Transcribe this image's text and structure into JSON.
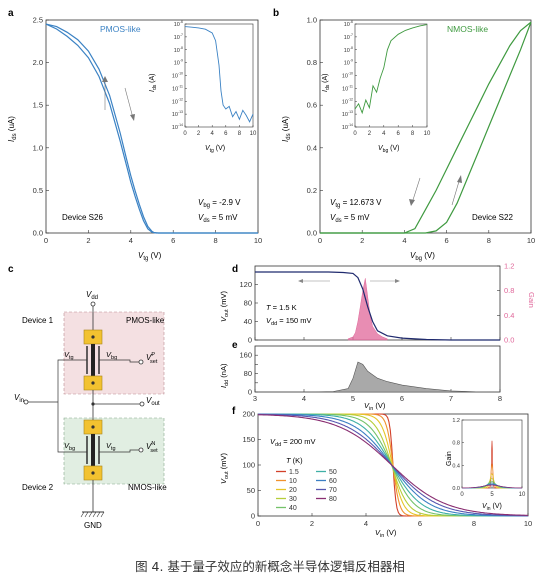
{
  "caption": "图 4. 基于量子效应的新概念半导体逻辑反相器相",
  "colors": {
    "pmos": "#3b82c4",
    "nmos": "#3f9a40",
    "gain_pink": "#e0679a",
    "vout_navy": "#1f2a6e",
    "ids_gray": "#a9a9a9",
    "device1_fill": "#f4e0e2",
    "device2_fill": "#e1eee2",
    "gate_yellow": "#f2c230"
  },
  "chart_data": [
    {
      "panel": "a",
      "type": "line",
      "xlabel": "V_tg (V)",
      "ylabel": "I_ds (uA)",
      "xlim": [
        0,
        10
      ],
      "ylim": [
        0,
        2.6
      ],
      "xticks": [
        "0",
        "2",
        "4",
        "6",
        "8",
        "10"
      ],
      "yticks": [
        "0.0",
        "0.5",
        "1.0",
        "1.5",
        "2.0",
        "2.5"
      ],
      "series": [
        {
          "name": "PMOS-like",
          "x": [
            0,
            0.5,
            1,
            1.5,
            2,
            2.5,
            3,
            3.5,
            3.8,
            4,
            4.2,
            4.4,
            4.6,
            4.8,
            5,
            5.1,
            5.3,
            6,
            8,
            10
          ],
          "y": [
            2.55,
            2.52,
            2.45,
            2.36,
            2.22,
            2.0,
            1.68,
            1.22,
            0.9,
            0.7,
            0.52,
            0.35,
            0.2,
            0.08,
            0.02,
            0.005,
            0,
            0,
            0,
            0
          ]
        },
        {
          "name": "",
          "x": [
            0,
            0.5,
            1,
            1.5,
            2,
            2.5,
            3,
            3.5,
            3.8,
            4,
            4.2,
            4.4,
            4.6,
            4.8,
            5,
            5.2,
            5.4,
            6,
            8,
            10
          ],
          "y": [
            2.55,
            2.49,
            2.4,
            2.29,
            2.14,
            1.91,
            1.58,
            1.12,
            0.82,
            0.62,
            0.45,
            0.29,
            0.15,
            0.05,
            0.01,
            0,
            0,
            0,
            0,
            0
          ]
        }
      ],
      "annotations": [
        "V_bg = -2.9 V",
        "V_ds = 5 mV",
        "Device S26"
      ],
      "inset": {
        "xlabel": "V_tg (V)",
        "ylabel": "I_ds (A)",
        "xlim": [
          0,
          10
        ],
        "xticks": [
          "0",
          "2",
          "4",
          "6",
          "8",
          "10"
        ],
        "yticks": [
          "10^-6",
          "10^-7",
          "10^-8",
          "10^-9",
          "10^-10",
          "10^-11",
          "10^-12",
          "10^-13",
          "10^-14"
        ],
        "x": [
          0,
          1,
          2,
          3,
          4,
          4.5,
          5,
          5.3,
          5.6,
          6,
          6.5,
          7,
          7.5,
          8,
          8.5,
          9,
          9.5,
          10
        ],
        "log10_y": [
          -6.2,
          -6.25,
          -6.3,
          -6.4,
          -6.7,
          -7.3,
          -9.2,
          -11.2,
          -12.3,
          -12.6,
          -12.4,
          -13.2,
          -12.8,
          -13.4,
          -12.7,
          -13.1,
          -13.6,
          -13.0
        ]
      }
    },
    {
      "panel": "b",
      "type": "line",
      "xlabel": "V_bg (V)",
      "ylabel": "I_ds (uA)",
      "xlim": [
        0,
        10
      ],
      "ylim": [
        0,
        1.0
      ],
      "xticks": [
        "0",
        "2",
        "4",
        "6",
        "8",
        "10"
      ],
      "yticks": [
        "0.0",
        "0.2",
        "0.4",
        "0.6",
        "0.8",
        "1.0"
      ],
      "series": [
        {
          "name": "NMOS-like",
          "x": [
            0,
            3,
            4,
            4.5,
            5,
            5.5,
            6,
            6.5,
            7,
            7.5,
            8,
            8.5,
            9,
            9.5,
            10
          ],
          "y": [
            0,
            0,
            0,
            0.02,
            0.11,
            0.2,
            0.3,
            0.4,
            0.5,
            0.6,
            0.7,
            0.79,
            0.88,
            0.95,
            0.99
          ]
        },
        {
          "name": "",
          "x": [
            0,
            4,
            5,
            5.5,
            6,
            6.5,
            7,
            7.5,
            8,
            8.5,
            9,
            9.5,
            10
          ],
          "y": [
            0,
            0,
            0,
            0.01,
            0.05,
            0.14,
            0.26,
            0.38,
            0.5,
            0.62,
            0.74,
            0.86,
            0.99
          ]
        }
      ],
      "annotations": [
        "V_tg = 12.673 V",
        "V_ds = 5 mV",
        "Device S22"
      ],
      "inset": {
        "xlabel": "V_bg (V)",
        "ylabel": "I_ds (A)",
        "xlim": [
          0,
          10
        ],
        "xticks": [
          "0",
          "2",
          "4",
          "6",
          "8",
          "10"
        ],
        "yticks": [
          "10^-6",
          "10^-7",
          "10^-8",
          "10^-9",
          "10^-10",
          "10^-11",
          "10^-12",
          "10^-13",
          "10^-14"
        ],
        "x": [
          0,
          0.5,
          1,
          1.5,
          2,
          2.5,
          3,
          3.5,
          4,
          4.5,
          5,
          6,
          7,
          8,
          9,
          10
        ],
        "log10_y": [
          -12.6,
          -12.2,
          -12.9,
          -11.9,
          -12.5,
          -10.8,
          -11.3,
          -10.2,
          -9.4,
          -8.0,
          -7.3,
          -6.8,
          -6.5,
          -6.3,
          -6.15,
          -6.05
        ]
      }
    },
    {
      "panel": "d",
      "type": "line",
      "xlabel": "",
      "ylabel": "V_out (mV)",
      "y2label": "Gain",
      "xlim": [
        3,
        8
      ],
      "ylim": [
        0,
        160
      ],
      "y2lim": [
        0,
        1.2
      ],
      "yticks": [
        "0",
        "40",
        "80",
        "120"
      ],
      "y2ticks": [
        "0.0",
        "0.4",
        "0.8",
        "1.2"
      ],
      "series": [
        {
          "name": "V_out",
          "x": [
            3,
            4,
            4.5,
            4.8,
            5.0,
            5.1,
            5.2,
            5.3,
            5.4,
            5.5,
            5.7,
            6,
            6.5,
            7,
            8
          ],
          "y": [
            147,
            147,
            147,
            146,
            144,
            135,
            110,
            72,
            40,
            20,
            9,
            4,
            1,
            0,
            0
          ]
        }
      ],
      "gain": {
        "x": [
          4.9,
          5.0,
          5.05,
          5.1,
          5.15,
          5.2,
          5.25,
          5.3,
          5.35,
          5.4,
          5.5,
          5.6,
          5.7
        ],
        "y": [
          0.02,
          0.05,
          0.12,
          0.3,
          0.55,
          0.8,
          1.0,
          0.7,
          0.4,
          0.22,
          0.1,
          0.05,
          0.02
        ]
      },
      "annotations": [
        "T = 1.5 K",
        "V_dd = 150 mV"
      ]
    },
    {
      "panel": "e",
      "type": "area",
      "xlabel": "V_in (V)",
      "ylabel": "I_dd (nA)",
      "xlim": [
        3,
        8
      ],
      "ylim": [
        0,
        200
      ],
      "xticks": [
        "3",
        "4",
        "5",
        "6",
        "7",
        "8"
      ],
      "yticks": [
        "0",
        "40",
        "80",
        "120",
        "160"
      ],
      "series": [
        {
          "name": "I_dd",
          "x": [
            3,
            4,
            4.6,
            4.9,
            5.0,
            5.1,
            5.2,
            5.3,
            5.5,
            5.7,
            6,
            6.5,
            7,
            7.5,
            8
          ],
          "y": [
            0,
            0,
            2,
            15,
            60,
            130,
            120,
            90,
            60,
            45,
            30,
            15,
            5,
            1,
            0
          ]
        }
      ]
    },
    {
      "panel": "f",
      "type": "line",
      "xlabel": "V_in (V)",
      "ylabel": "V_out (mV)",
      "xlim": [
        0,
        10
      ],
      "ylim": [
        0,
        200
      ],
      "xticks": [
        "0",
        "2",
        "4",
        "6",
        "8",
        "10"
      ],
      "yticks": [
        "0",
        "50",
        "100",
        "150",
        "200"
      ],
      "legend_title": "T (K)",
      "annotations": [
        "V_dd = 200 mV"
      ],
      "series": [
        {
          "name": "1.5",
          "color": "#d3412a",
          "mid": 5.0,
          "width": 0.06
        },
        {
          "name": "10",
          "color": "#f0922e",
          "mid": 5.0,
          "width": 0.12
        },
        {
          "name": "20",
          "color": "#e6c528",
          "mid": 4.98,
          "width": 0.2
        },
        {
          "name": "30",
          "color": "#b6ce3a",
          "mid": 4.95,
          "width": 0.3
        },
        {
          "name": "40",
          "color": "#74c26a",
          "mid": 4.95,
          "width": 0.42
        },
        {
          "name": "50",
          "color": "#3fb0a6",
          "mid": 4.95,
          "width": 0.55
        },
        {
          "name": "60",
          "color": "#3b7fc4",
          "mid": 4.95,
          "width": 0.7
        },
        {
          "name": "70",
          "color": "#5657b0",
          "mid": 4.95,
          "width": 0.85
        },
        {
          "name": "80",
          "color": "#8a2f72",
          "mid": 4.95,
          "width": 1.0
        }
      ],
      "inset": {
        "xlabel": "V_in (V)",
        "ylabel": "Gain",
        "xlim": [
          0,
          10
        ],
        "ylim": [
          0,
          1.2
        ],
        "xticks": [
          "0",
          "5",
          "10"
        ],
        "yticks": [
          "0.0",
          "0.4",
          "0.8",
          "1.2"
        ]
      }
    }
  ],
  "panel_a": {
    "letter": "a",
    "legend": "PMOS-like",
    "x": "0",
    "ylab": "I",
    "ylab_sub": "ds",
    "ylab_unit": " (uA)",
    "xlab": "V",
    "xlab_sub": "tg",
    "xlab_unit": " (V)",
    "ann1_pre": "V",
    "ann1_sub": "bg",
    "ann1_post": " = -2.9 V",
    "ann2_pre": "V",
    "ann2_sub": "ds",
    "ann2_post": " = 5 mV",
    "device": "Device S26",
    "inset_ylab": "I",
    "inset_ylab_sub": "ds",
    "inset_ylab_unit": " (A)",
    "inset_xlab": "V",
    "inset_xlab_sub": "tg",
    "inset_xlab_unit": " (V)"
  },
  "panel_b": {
    "letter": "b",
    "legend": "NMOS-like",
    "ylab": "I",
    "ylab_sub": "ds",
    "ylab_unit": " (uA)",
    "xlab": "V",
    "xlab_sub": "bg",
    "xlab_unit": " (V)",
    "ann1_pre": "V",
    "ann1_sub": "tg",
    "ann1_post": " = 12.673 V",
    "ann2_pre": "V",
    "ann2_sub": "ds",
    "ann2_post": " = 5 mV",
    "device": "Device S22",
    "inset_ylab": "I",
    "inset_ylab_sub": "ds",
    "inset_ylab_unit": " (A)",
    "inset_xlab": "V",
    "inset_xlab_sub": "bg",
    "inset_xlab_unit": " (V)"
  },
  "panel_c": {
    "letter": "c",
    "device1": "Device 1",
    "device2": "Device 2",
    "pmos": "PMOS-like",
    "nmos": "NMOS-like",
    "vdd": "V",
    "vdd_sub": "dd",
    "vin": "V",
    "vin_sub": "in",
    "vout": "V",
    "vout_sub": "out",
    "vtg": "V",
    "vtg_sub": "tg",
    "vbg": "V",
    "vbg_sub": "bg",
    "vset": "V",
    "vset_sub": "set",
    "vset_p": "P",
    "vset_n": "N",
    "gnd": "GND"
  },
  "panel_d": {
    "letter": "d",
    "ylab": "V",
    "ylab_sub": "out",
    "ylab_unit": " (mV)",
    "y2lab": "Gain",
    "ann1_pre": "T",
    "ann1_post": " = 1.5 K",
    "ann2_pre": "V",
    "ann2_sub": "dd",
    "ann2_post": " = 150 mV"
  },
  "panel_e": {
    "letter": "e",
    "ylab": "I",
    "ylab_sub": "dd",
    "ylab_unit": " (nA)",
    "xlab": "V",
    "xlab_sub": "in",
    "xlab_unit": " (V)"
  },
  "panel_f": {
    "letter": "f",
    "ylab": "V",
    "ylab_sub": "out",
    "ylab_unit": " (mV)",
    "xlab": "V",
    "xlab_sub": "in",
    "xlab_unit": " (V)",
    "ann_pre": "V",
    "ann_sub": "dd",
    "ann_post": " = 200 mV",
    "legend_title_pre": "T",
    "legend_title_post": " (K)",
    "inset_ylab": "Gain",
    "inset_xlab": "V",
    "inset_xlab_sub": "in",
    "inset_xlab_unit": " (V)"
  }
}
